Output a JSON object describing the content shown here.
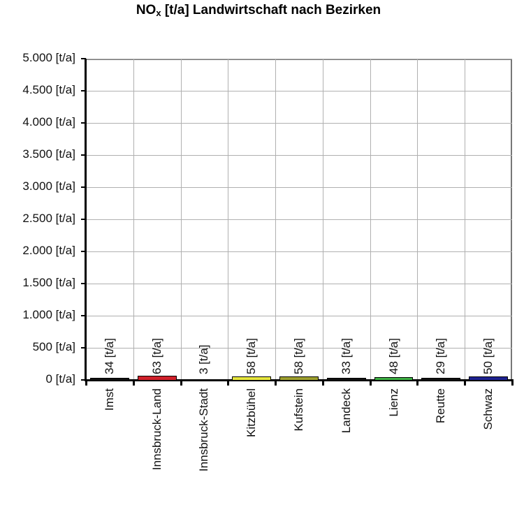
{
  "title": {
    "main": "NO",
    "sub": "x",
    "rest": " [t/a] Landwirtschaft nach Bezirken"
  },
  "y_ticks": [
    "5.000 [t/a]",
    "4.500 [t/a]",
    "4.000 [t/a]",
    "3.500 [t/a]",
    "3.000 [t/a]",
    "2.500 [t/a]",
    "2.000 [t/a]",
    "1.500 [t/a]",
    "1.000 [t/a]",
    "500 [t/a]",
    "0 [t/a]"
  ],
  "bars": [
    {
      "category": "Imst",
      "value": 34,
      "label": "34 [t/a]",
      "color": "#111111"
    },
    {
      "category": "Innsbruck-Land",
      "value": 63,
      "label": "63 [t/a]",
      "color": "#d0202a"
    },
    {
      "category": "Innsbruck-Stadt",
      "value": 3,
      "label": "3 [t/a]",
      "color": "#111111"
    },
    {
      "category": "Kitzbühel",
      "value": 58,
      "label": "58 [t/a]",
      "color": "#e6e63c"
    },
    {
      "category": "Kufstein",
      "value": 58,
      "label": "58 [t/a]",
      "color": "#9ea02e"
    },
    {
      "category": "Landeck",
      "value": 33,
      "label": "33 [t/a]",
      "color": "#111111"
    },
    {
      "category": "Lienz",
      "value": 48,
      "label": "48 [t/a]",
      "color": "#3cb043"
    },
    {
      "category": "Reutte",
      "value": 29,
      "label": "29 [t/a]",
      "color": "#111111"
    },
    {
      "category": "Schwaz",
      "value": 50,
      "label": "50 [t/a]",
      "color": "#1e2290"
    }
  ],
  "chart_data": {
    "type": "bar",
    "title": "NOx [t/a] Landwirtschaft nach Bezirken",
    "categories": [
      "Imst",
      "Innsbruck-Land",
      "Innsbruck-Stadt",
      "Kitzbühel",
      "Kufstein",
      "Landeck",
      "Lienz",
      "Reutte",
      "Schwaz"
    ],
    "values": [
      34,
      63,
      3,
      58,
      58,
      33,
      48,
      29,
      50
    ],
    "data_labels": [
      "34 [t/a]",
      "63 [t/a]",
      "3 [t/a]",
      "58 [t/a]",
      "58 [t/a]",
      "33 [t/a]",
      "48 [t/a]",
      "29 [t/a]",
      "50 [t/a]"
    ],
    "colors": [
      "#111111",
      "#d0202a",
      "#111111",
      "#e6e63c",
      "#9ea02e",
      "#111111",
      "#3cb043",
      "#111111",
      "#1e2290"
    ],
    "xlabel": "",
    "ylabel": "",
    "ylim": [
      0,
      5000
    ],
    "y_tick_step": 500,
    "y_unit": "[t/a]",
    "grid": true,
    "legend": "none"
  }
}
